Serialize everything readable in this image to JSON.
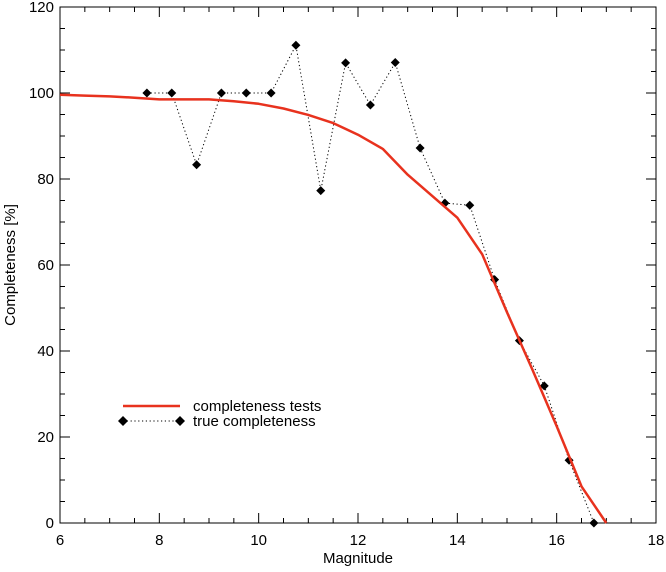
{
  "chart_data": {
    "type": "line",
    "xlabel": "Magnitude",
    "ylabel": "Completeness [%]",
    "xlim": [
      6,
      18
    ],
    "ylim": [
      0,
      120
    ],
    "xticks": [
      6,
      8,
      10,
      12,
      14,
      16,
      18
    ],
    "yticks": [
      0,
      20,
      40,
      60,
      80,
      100,
      120
    ],
    "legend_position": "lower-left",
    "series": [
      {
        "name": "completeness tests",
        "style": "solid",
        "color": "#e8321e",
        "x": [
          6.0,
          6.5,
          7.0,
          7.5,
          8.0,
          8.5,
          9.0,
          9.5,
          10.0,
          10.5,
          11.0,
          11.5,
          12.0,
          12.5,
          13.0,
          13.5,
          14.0,
          14.5,
          15.0,
          15.5,
          16.0,
          16.5,
          17.0
        ],
        "y": [
          99.6,
          99.4,
          99.2,
          98.9,
          98.5,
          98.5,
          98.5,
          98.1,
          97.5,
          96.4,
          94.9,
          93.0,
          90.3,
          87.0,
          81.0,
          76.0,
          71.0,
          62.5,
          49.0,
          36.0,
          22.5,
          8.5,
          0.0
        ]
      },
      {
        "name": "true completeness",
        "style": "dotted-diamond",
        "color": "#000000",
        "x": [
          7.75,
          8.25,
          8.75,
          9.25,
          9.75,
          10.25,
          10.75,
          11.25,
          11.75,
          12.25,
          12.75,
          13.25,
          13.75,
          14.25,
          14.75,
          15.25,
          15.75,
          16.25,
          16.75
        ],
        "y": [
          100.0,
          100.0,
          83.3,
          100.0,
          100.0,
          100.0,
          111.1,
          77.3,
          107.0,
          97.2,
          107.1,
          87.2,
          74.4,
          73.9,
          56.6,
          42.4,
          31.9,
          14.6,
          0.0
        ]
      }
    ]
  }
}
